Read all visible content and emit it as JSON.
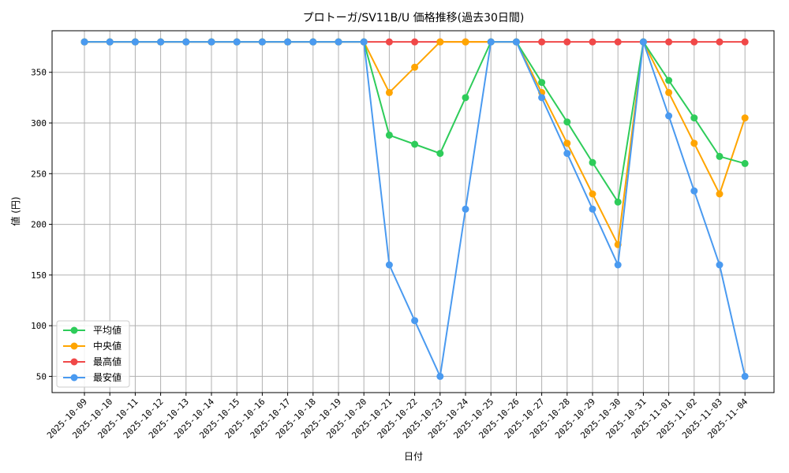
{
  "chart_data": {
    "type": "line",
    "title": "プロトーガ/SV11B/U 価格推移(過去30日間)",
    "xlabel": "日付",
    "ylabel": "値 (円)",
    "ylim": [
      34,
      391
    ],
    "yticks": [
      50,
      100,
      150,
      200,
      250,
      300,
      350
    ],
    "grid": true,
    "legend_position": "lower-left",
    "categories": [
      "2025-10-09",
      "2025-10-10",
      "2025-10-11",
      "2025-10-12",
      "2025-10-13",
      "2025-10-14",
      "2025-10-15",
      "2025-10-16",
      "2025-10-17",
      "2025-10-18",
      "2025-10-19",
      "2025-10-20",
      "2025-10-21",
      "2025-10-22",
      "2025-10-23",
      "2025-10-24",
      "2025-10-25",
      "2025-10-26",
      "2025-10-27",
      "2025-10-28",
      "2025-10-29",
      "2025-10-30",
      "2025-10-31",
      "2025-11-01",
      "2025-11-02",
      "2025-11-03",
      "2025-11-04"
    ],
    "series": [
      {
        "name": "最高値",
        "color": "#f04848",
        "values": [
          380,
          380,
          380,
          380,
          380,
          380,
          380,
          380,
          380,
          380,
          380,
          380,
          380,
          380,
          380,
          380,
          380,
          380,
          380,
          380,
          380,
          380,
          380,
          380,
          380,
          380,
          380
        ]
      },
      {
        "name": "中央値",
        "color": "#ffa500",
        "values": [
          380,
          380,
          380,
          380,
          380,
          380,
          380,
          380,
          380,
          380,
          380,
          380,
          330,
          355,
          380,
          380,
          380,
          380,
          330,
          280,
          230,
          180,
          380,
          330,
          280,
          230,
          305
        ]
      },
      {
        "name": "平均値",
        "color": "#2ecc5a",
        "values": [
          380,
          380,
          380,
          380,
          380,
          380,
          380,
          380,
          380,
          380,
          380,
          380,
          288,
          279,
          270,
          325,
          380,
          380,
          340,
          301,
          261,
          222,
          380,
          342,
          305,
          267,
          260
        ]
      },
      {
        "name": "最安値",
        "color": "#4a9af0",
        "values": [
          380,
          380,
          380,
          380,
          380,
          380,
          380,
          380,
          380,
          380,
          380,
          380,
          160,
          105,
          50,
          215,
          380,
          380,
          325,
          270,
          215,
          160,
          380,
          307,
          233,
          160,
          50
        ]
      }
    ],
    "legend_order": [
      "平均値",
      "中央値",
      "最高値",
      "最安値"
    ]
  }
}
